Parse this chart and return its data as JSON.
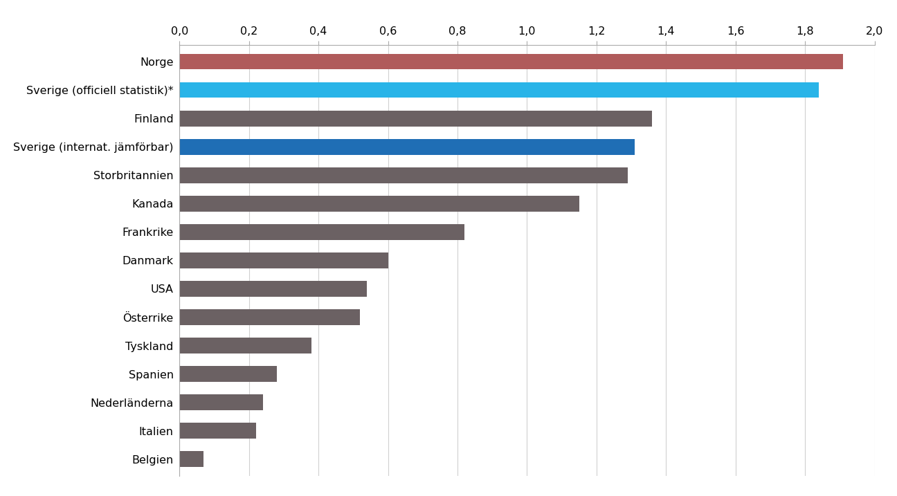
{
  "categories": [
    "Belgien",
    "Italien",
    "Nederländerna",
    "Spanien",
    "Tyskland",
    "Österrike",
    "USA",
    "Danmark",
    "Frankrike",
    "Kanada",
    "Storbritannien",
    "Sverige (internat. jämförbar)",
    "Finland",
    "Sverige (officiell statistik)*",
    "Norge"
  ],
  "values": [
    0.07,
    0.22,
    0.24,
    0.28,
    0.38,
    0.52,
    0.54,
    0.6,
    0.82,
    1.15,
    1.29,
    1.31,
    1.36,
    1.84,
    1.91
  ],
  "colors": [
    "#6b6163",
    "#6b6163",
    "#6b6163",
    "#6b6163",
    "#6b6163",
    "#6b6163",
    "#6b6163",
    "#6b6163",
    "#6b6163",
    "#6b6163",
    "#6b6163",
    "#1f6eb5",
    "#6b6163",
    "#29b4e8",
    "#b05b5b"
  ],
  "xlim": [
    0,
    2.0
  ],
  "xticks": [
    0.0,
    0.2,
    0.4,
    0.6,
    0.8,
    1.0,
    1.2,
    1.4,
    1.6,
    1.8,
    2.0
  ],
  "xtick_labels": [
    "0,0",
    "0,2",
    "0,4",
    "0,6",
    "0,8",
    "1,0",
    "1,2",
    "1,4",
    "1,6",
    "1,8",
    "2,0"
  ],
  "bar_height": 0.55,
  "background_color": "#ffffff",
  "grid_color": "#d0d0d0",
  "label_fontsize": 11.5,
  "tick_fontsize": 11.5
}
